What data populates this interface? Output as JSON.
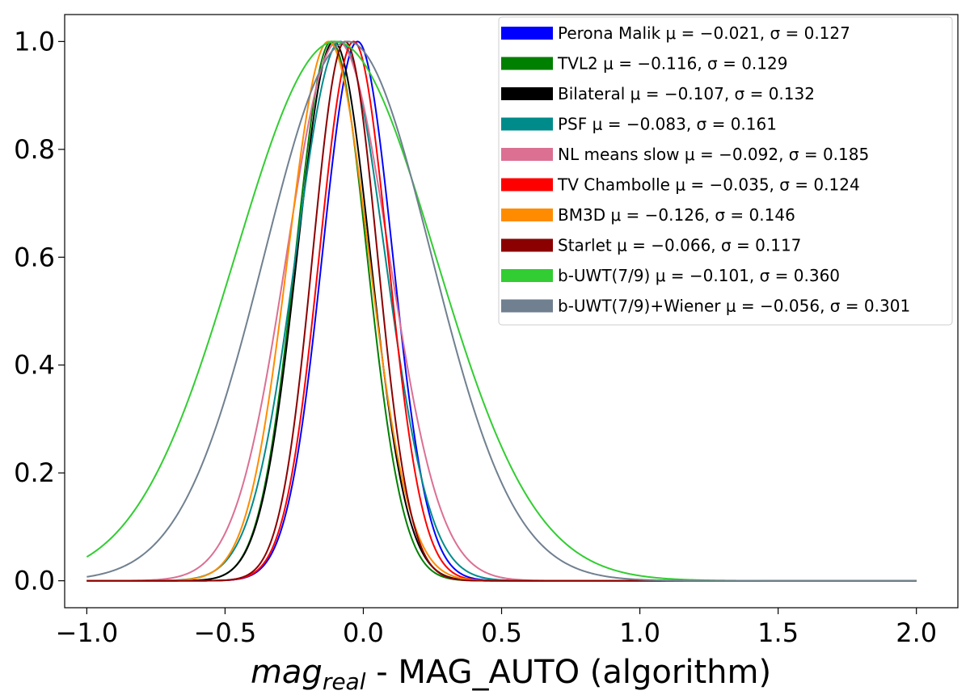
{
  "chart_data": {
    "type": "line",
    "title": "",
    "xlabel_math": "mag",
    "xlabel_sub": "real",
    "xlabel_rest": " - MAG_AUTO (algorithm)",
    "ylabel": "",
    "xlim": [
      -1.08,
      2.15
    ],
    "ylim": [
      -0.05,
      1.05
    ],
    "x_range": [
      -1.0,
      2.0
    ],
    "x_ticks": [
      -1.0,
      -0.5,
      0.0,
      0.5,
      1.0,
      1.5,
      2.0
    ],
    "x_tick_labels": [
      "−1.0",
      "−0.5",
      "0.0",
      "0.5",
      "1.0",
      "1.5",
      "2.0"
    ],
    "y_ticks": [
      0.0,
      0.2,
      0.4,
      0.6,
      0.8,
      1.0
    ],
    "y_tick_labels": [
      "0.0",
      "0.2",
      "0.4",
      "0.6",
      "0.8",
      "1.0"
    ],
    "grid": false,
    "legend_position": "top-right",
    "series": [
      {
        "name": "Perona Malik",
        "label": "Perona Malik μ = −0.021, σ = 0.127",
        "mu": -0.021,
        "sigma": 0.127,
        "color": "#0000ff"
      },
      {
        "name": "TVL2",
        "label": "TVL2 μ = −0.116, σ = 0.129",
        "mu": -0.116,
        "sigma": 0.129,
        "color": "#008000"
      },
      {
        "name": "Bilateral",
        "label": "Bilateral μ = −0.107, σ = 0.132",
        "mu": -0.107,
        "sigma": 0.132,
        "color": "#000000"
      },
      {
        "name": "PSF",
        "label": "PSF μ = −0.083, σ = 0.161",
        "mu": -0.083,
        "sigma": 0.161,
        "color": "#008b8b"
      },
      {
        "name": "NL means slow",
        "label": "NL means slow μ = −0.092, σ = 0.185",
        "mu": -0.092,
        "sigma": 0.185,
        "color": "#db7093"
      },
      {
        "name": "TV Chambolle",
        "label": "TV Chambolle μ = −0.035, σ = 0.124",
        "mu": -0.035,
        "sigma": 0.124,
        "color": "#ff0000"
      },
      {
        "name": "BM3D",
        "label": "BM3D μ = −0.126, σ = 0.146",
        "mu": -0.126,
        "sigma": 0.146,
        "color": "#ff8c00"
      },
      {
        "name": "Starlet",
        "label": "Starlet μ = −0.066, σ = 0.117",
        "mu": -0.066,
        "sigma": 0.117,
        "color": "#8b0000"
      },
      {
        "name": "b-UWT(7/9)",
        "label": "b-UWT(7/9) μ = −0.101, σ = 0.360",
        "mu": -0.101,
        "sigma": 0.36,
        "color": "#32cd32"
      },
      {
        "name": "b-UWT(7/9)+Wiener",
        "label": "b-UWT(7/9)+Wiener μ = −0.056, σ = 0.301",
        "mu": -0.056,
        "sigma": 0.301,
        "color": "#708090"
      }
    ]
  }
}
